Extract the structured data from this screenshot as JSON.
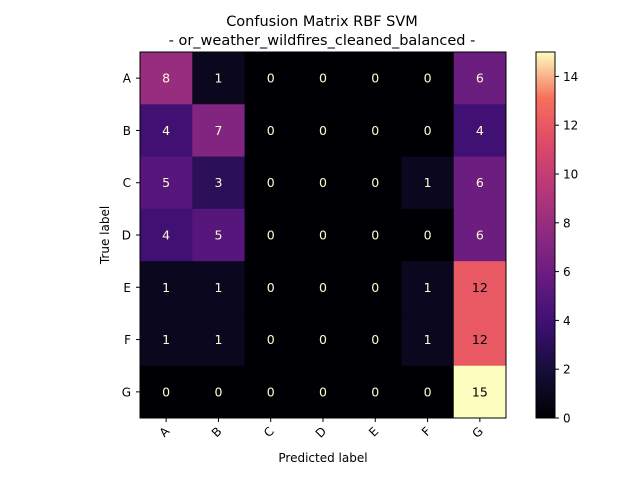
{
  "chart_data": {
    "type": "heatmap",
    "title": "Confusion Matrix RBF SVM",
    "subtitle": "- or_weather_wildfires_cleaned_balanced -",
    "xlabel": "Predicted label",
    "ylabel": "True label",
    "x_categories": [
      "A",
      "B",
      "C",
      "D",
      "E",
      "F",
      "G"
    ],
    "y_categories": [
      "A",
      "B",
      "C",
      "D",
      "E",
      "F",
      "G"
    ],
    "values": [
      [
        8,
        1,
        0,
        0,
        0,
        0,
        6
      ],
      [
        4,
        7,
        0,
        0,
        0,
        0,
        4
      ],
      [
        5,
        3,
        0,
        0,
        0,
        1,
        6
      ],
      [
        4,
        5,
        0,
        0,
        0,
        0,
        6
      ],
      [
        1,
        1,
        0,
        0,
        0,
        1,
        12
      ],
      [
        1,
        1,
        0,
        0,
        0,
        1,
        12
      ],
      [
        0,
        0,
        0,
        0,
        0,
        0,
        15
      ]
    ],
    "colormap": "magma",
    "vmin": 0,
    "vmax": 15,
    "colorbar_ticks": [
      0,
      2,
      4,
      6,
      8,
      10,
      12,
      14
    ],
    "cell_text_color_dark": "#fffbd5",
    "cell_text_color_light": "#000000"
  }
}
